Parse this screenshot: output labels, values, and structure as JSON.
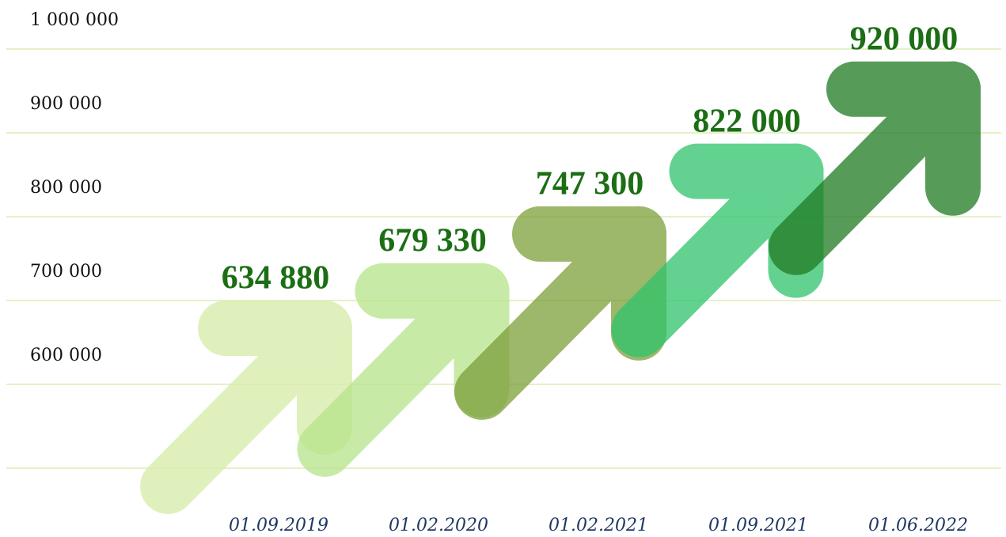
{
  "chart_data": {
    "type": "arrow-bar",
    "categories": [
      "01.09.2019",
      "01.02.2020",
      "01.02.2021",
      "01.09.2021",
      "01.06.2022"
    ],
    "values": [
      634880,
      679330,
      747300,
      822000,
      920000
    ],
    "value_labels": [
      "634 880",
      "679 330",
      "747 300",
      "822 000",
      "920 000"
    ],
    "colors": [
      "#d6eca8",
      "#b6e48a",
      "#7d9f3a",
      "#2fc46c",
      "#1f7a22"
    ],
    "ylim": [
      500000,
      1000000
    ],
    "yticks": [
      {
        "value": 600000,
        "label": "600 000"
      },
      {
        "value": 700000,
        "label": "700 000"
      },
      {
        "value": 800000,
        "label": "800 000"
      },
      {
        "value": 900000,
        "label": "900 000"
      },
      {
        "value": 1000000,
        "label": "1 000 000"
      }
    ],
    "grid": true
  }
}
